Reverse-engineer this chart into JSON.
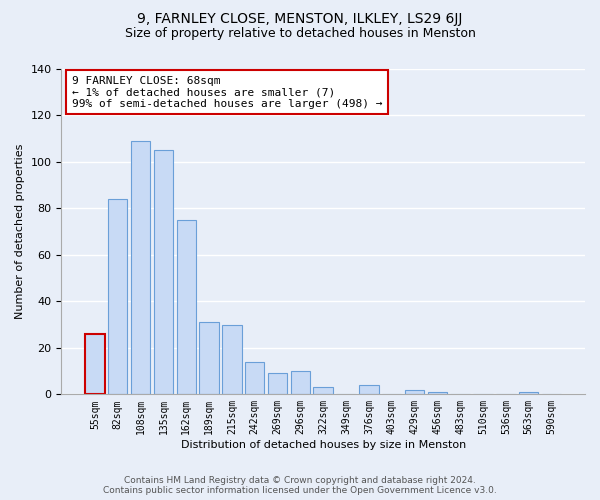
{
  "title": "9, FARNLEY CLOSE, MENSTON, ILKLEY, LS29 6JJ",
  "subtitle": "Size of property relative to detached houses in Menston",
  "xlabel": "Distribution of detached houses by size in Menston",
  "ylabel": "Number of detached properties",
  "bar_labels": [
    "55sqm",
    "82sqm",
    "108sqm",
    "135sqm",
    "162sqm",
    "189sqm",
    "215sqm",
    "242sqm",
    "269sqm",
    "296sqm",
    "322sqm",
    "349sqm",
    "376sqm",
    "403sqm",
    "429sqm",
    "456sqm",
    "483sqm",
    "510sqm",
    "536sqm",
    "563sqm",
    "590sqm"
  ],
  "bar_values": [
    26,
    84,
    109,
    105,
    75,
    31,
    30,
    14,
    9,
    10,
    3,
    0,
    4,
    0,
    2,
    1,
    0,
    0,
    0,
    1,
    0
  ],
  "highlight_bar_index": 0,
  "bar_fill_color": "#c8daf5",
  "bar_edge_color": "#6a9fd8",
  "highlight_edge_color": "#cc0000",
  "ylim": [
    0,
    140
  ],
  "yticks": [
    0,
    20,
    40,
    60,
    80,
    100,
    120,
    140
  ],
  "annotation_text": "9 FARNLEY CLOSE: 68sqm\n← 1% of detached houses are smaller (7)\n99% of semi-detached houses are larger (498) →",
  "footer_line1": "Contains HM Land Registry data © Crown copyright and database right 2024.",
  "footer_line2": "Contains public sector information licensed under the Open Government Licence v3.0.",
  "bg_color": "#e8eef8",
  "plot_bg_color": "#e8eef8",
  "grid_color": "#ffffff",
  "title_fontsize": 10,
  "subtitle_fontsize": 9,
  "tick_label_fontsize": 7,
  "ylabel_fontsize": 8,
  "xlabel_fontsize": 8,
  "footer_fontsize": 6.5,
  "annotation_fontsize": 8
}
